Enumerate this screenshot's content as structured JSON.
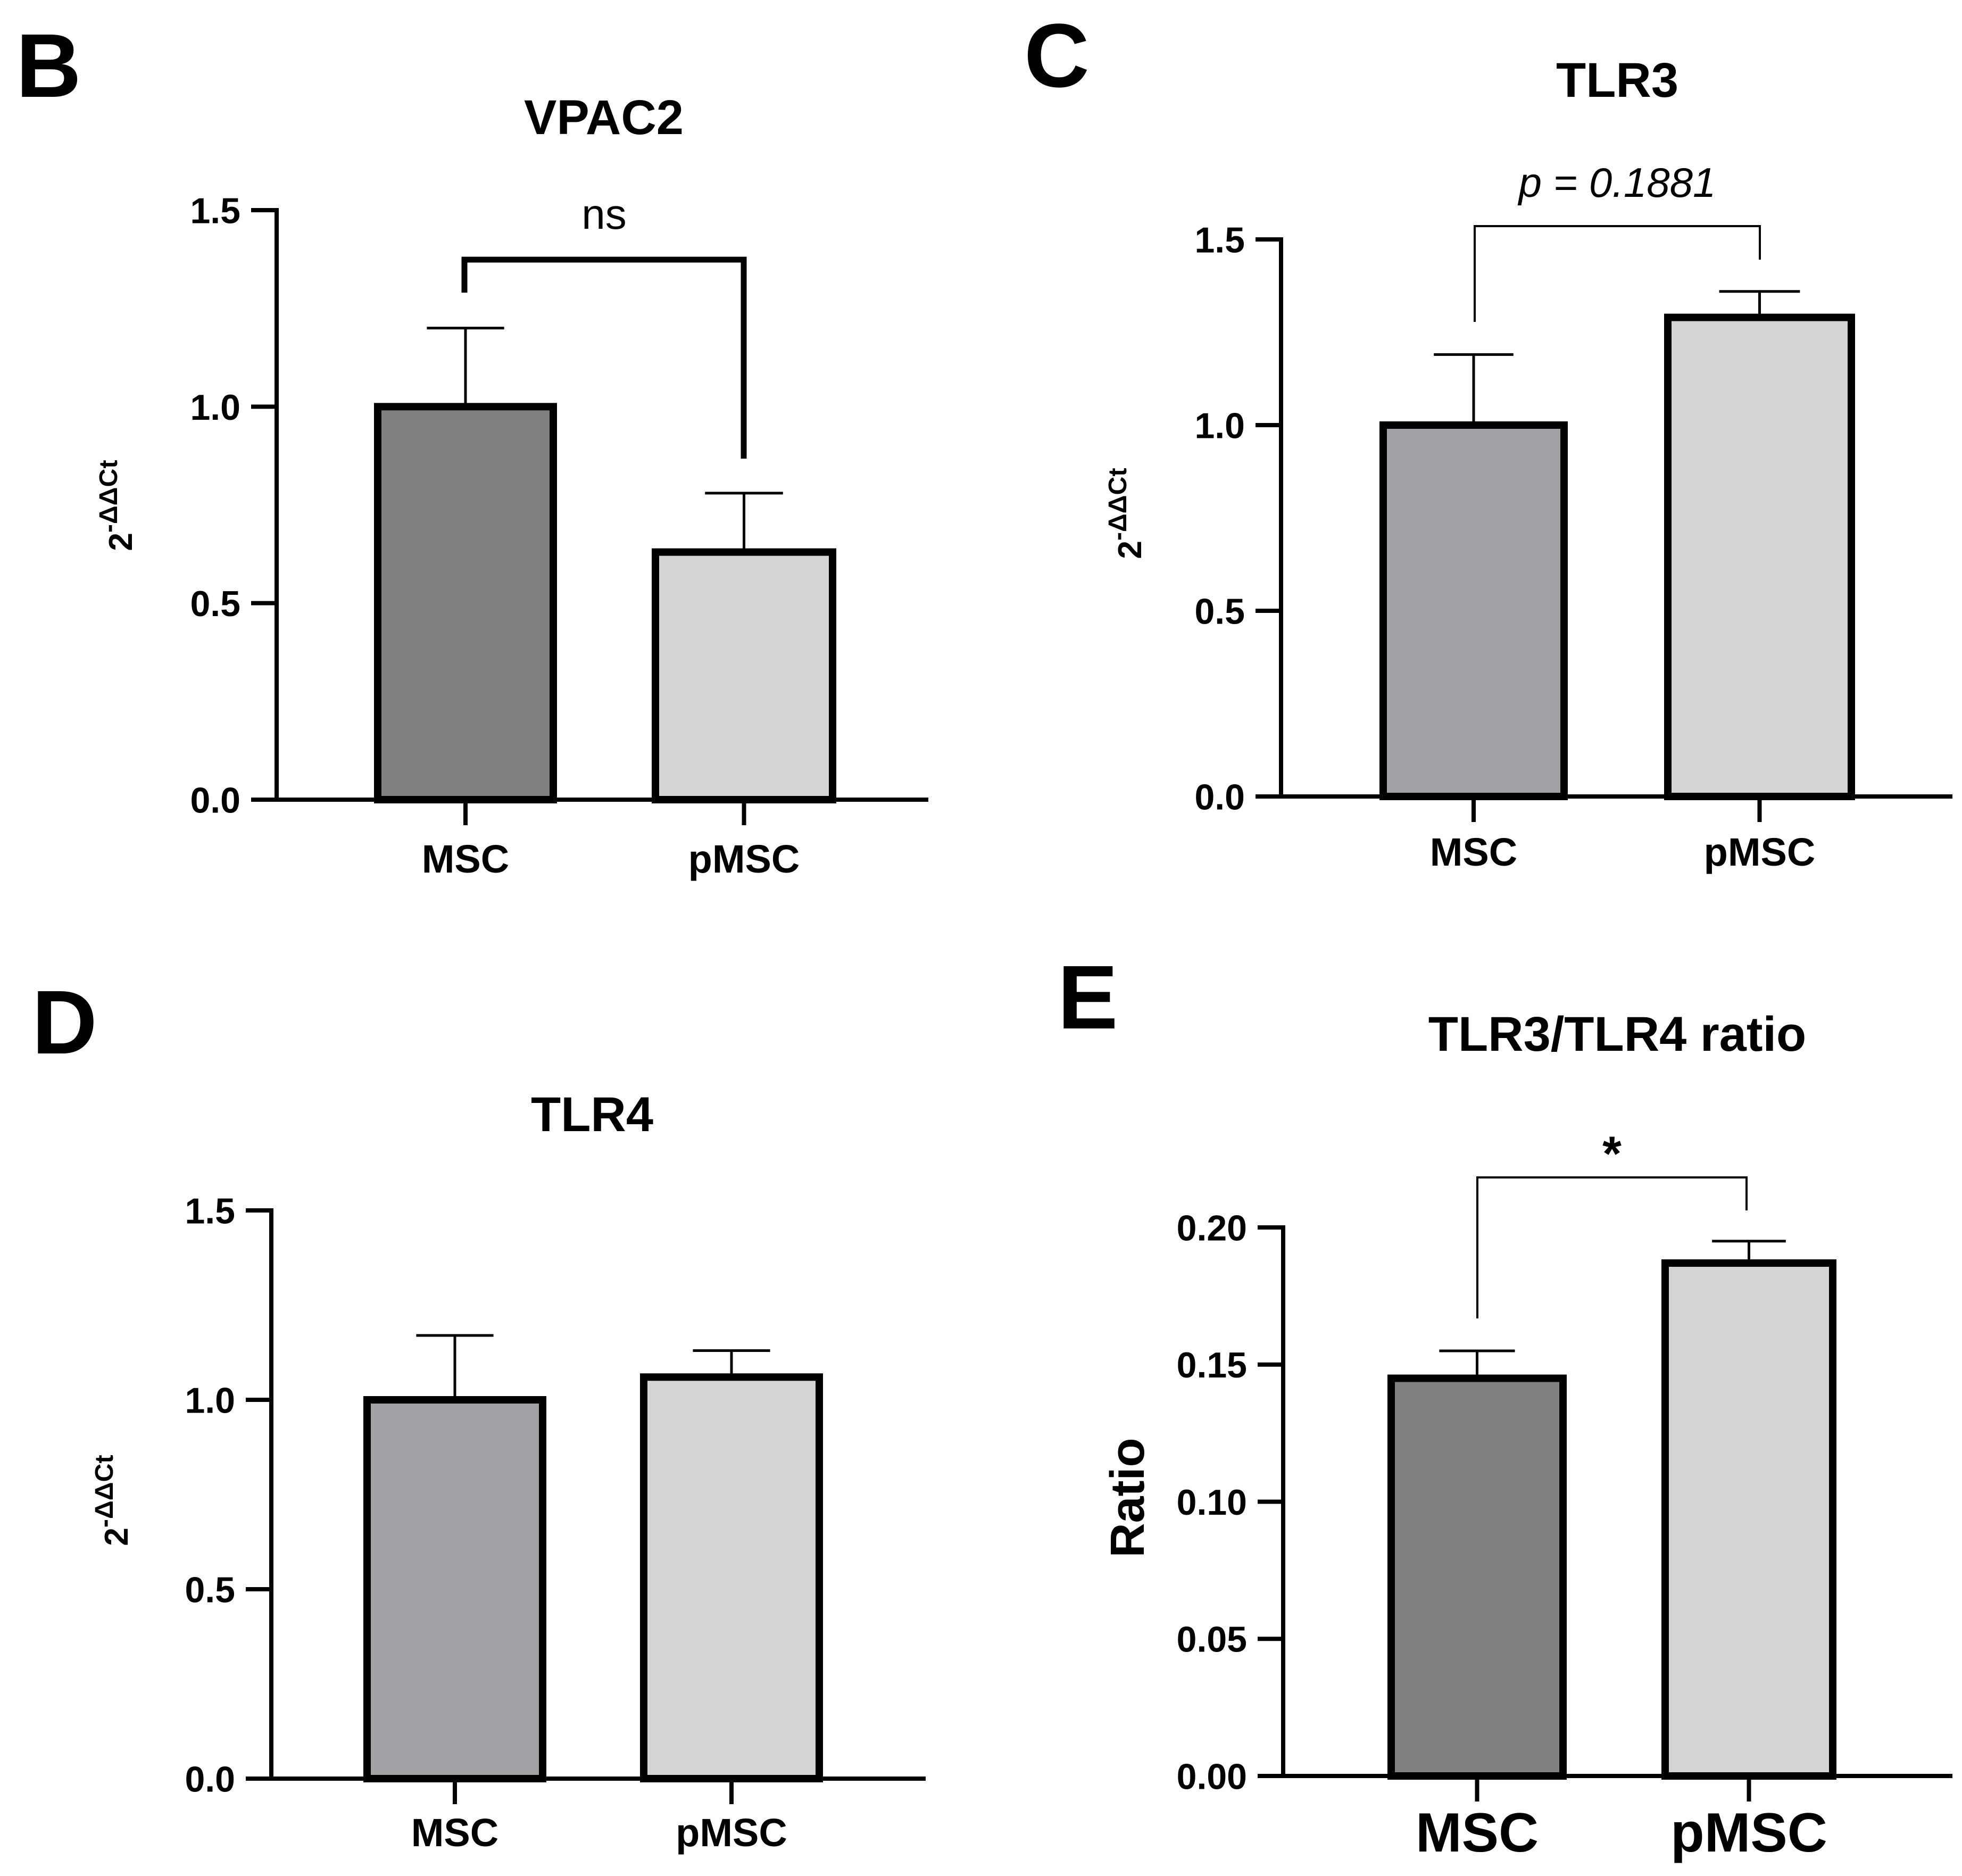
{
  "chart_data": [
    {
      "panel_label": "B",
      "type": "bar",
      "title": "VPAC2",
      "ylabel_base": "2",
      "ylabel_exp": "-ΔΔCt",
      "xlabel": "",
      "categories": [
        "MSC",
        "pMSC"
      ],
      "values": [
        1.0,
        0.63
      ],
      "errors": [
        0.2,
        0.15
      ],
      "colors": [
        "#808080",
        "#d4d4d4"
      ],
      "ylim": [
        0,
        1.5
      ],
      "yticks": [
        "0.0",
        "0.5",
        "1.0",
        "1.5"
      ],
      "significance": {
        "label": "ns",
        "italic": false,
        "style": "thick"
      }
    },
    {
      "panel_label": "C",
      "type": "bar",
      "title": "TLR3",
      "ylabel_base": "2",
      "ylabel_exp": "-ΔΔCt",
      "xlabel": "",
      "categories": [
        "MSC",
        "pMSC"
      ],
      "values": [
        1.0,
        1.29
      ],
      "errors": [
        0.19,
        0.07
      ],
      "colors": [
        "#a2a2a6",
        "#d4d4d4"
      ],
      "ylim": [
        0,
        1.5
      ],
      "yticks": [
        "0.0",
        "0.5",
        "1.0",
        "1.5"
      ],
      "significance": {
        "label": "p = 0.1881",
        "italic": true,
        "style": "thin"
      }
    },
    {
      "panel_label": "D",
      "type": "bar",
      "title": "TLR4",
      "ylabel_base": "2",
      "ylabel_exp": "-ΔΔCt",
      "xlabel": "",
      "categories": [
        "MSC",
        "pMSC"
      ],
      "values": [
        1.0,
        1.06
      ],
      "errors": [
        0.17,
        0.07
      ],
      "colors": [
        "#a2a2a6",
        "#d4d4d4"
      ],
      "ylim": [
        0,
        1.5
      ],
      "yticks": [
        "0.0",
        "0.5",
        "1.0",
        "1.5"
      ],
      "significance": null
    },
    {
      "panel_label": "E",
      "type": "bar",
      "title": "TLR3/TLR4 ratio",
      "ylabel": "Ratio",
      "xlabel": "",
      "categories": [
        "MSC",
        "pMSC"
      ],
      "values": [
        0.145,
        0.187
      ],
      "errors": [
        0.01,
        0.008
      ],
      "colors": [
        "#808080",
        "#d4d4d4"
      ],
      "ylim": [
        0,
        0.2
      ],
      "yticks": [
        "0.00",
        "0.05",
        "0.10",
        "0.15",
        "0.20"
      ],
      "significance": {
        "label": "*",
        "italic": false,
        "style": "thin"
      }
    }
  ]
}
